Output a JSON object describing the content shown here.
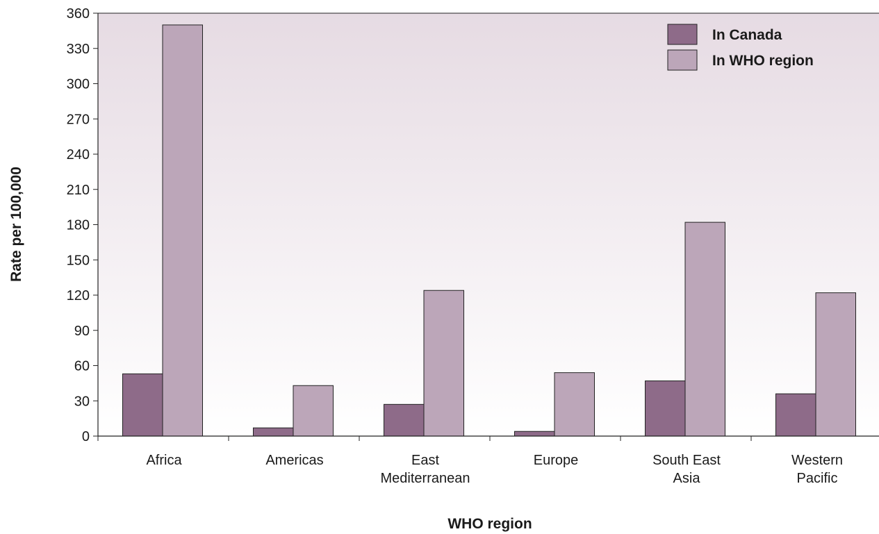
{
  "chart_data": {
    "type": "bar",
    "xlabel": "WHO region",
    "ylabel": "Rate per 100,000",
    "categories": [
      [
        "Africa"
      ],
      [
        "Americas"
      ],
      [
        "East",
        "Mediterranean"
      ],
      [
        "Europe"
      ],
      [
        "South East",
        "Asia"
      ],
      [
        "Western",
        "Pacific"
      ]
    ],
    "series": [
      {
        "name": "In Canada",
        "values": [
          53,
          7,
          27,
          4,
          47,
          36
        ],
        "color": "#8e6b89"
      },
      {
        "name": "In WHO region",
        "values": [
          350,
          43,
          124,
          54,
          182,
          122
        ],
        "color": "#bca6b9"
      }
    ],
    "ylim": [
      0,
      360
    ],
    "yticks": [
      0,
      30,
      60,
      90,
      120,
      150,
      180,
      210,
      240,
      270,
      300,
      330,
      360
    ],
    "grid": false,
    "legend_position": "top-right",
    "background_gradient": [
      "#e6dbe3",
      "#ffffff"
    ]
  }
}
